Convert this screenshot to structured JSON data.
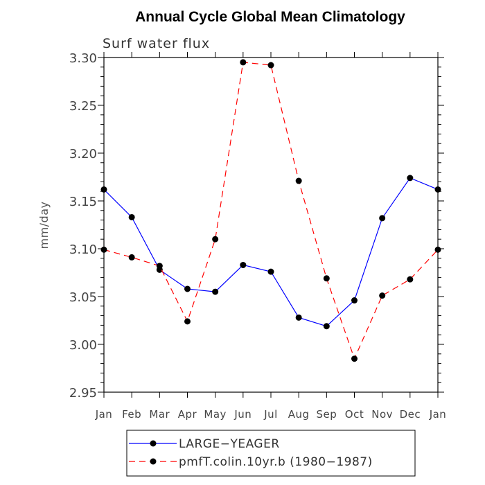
{
  "chart_data": {
    "type": "line",
    "title": "Annual Cycle Global Mean Climatology",
    "subtitle": "Surf water flux",
    "xlabel": "",
    "ylabel": "mm/day",
    "categories": [
      "Jan",
      "Feb",
      "Mar",
      "Apr",
      "May",
      "Jun",
      "Jul",
      "Aug",
      "Sep",
      "Oct",
      "Nov",
      "Dec",
      "Jan"
    ],
    "ylim": [
      2.95,
      3.3
    ],
    "yticks": [
      "2.95",
      "3.00",
      "3.05",
      "3.10",
      "3.15",
      "3.20",
      "3.25",
      "3.30"
    ],
    "series": [
      {
        "name": "LARGE−YEAGER",
        "color": "#0000ff",
        "dash": "solid",
        "values": [
          3.162,
          3.133,
          3.078,
          3.058,
          3.055,
          3.083,
          3.076,
          3.028,
          3.019,
          3.046,
          3.132,
          3.174,
          3.162
        ]
      },
      {
        "name": "pmfT.colin.10yr.b (1980−1987)",
        "color": "#ff0000",
        "dash": "dashed",
        "values": [
          3.099,
          3.091,
          3.082,
          3.024,
          3.11,
          3.295,
          3.292,
          3.171,
          3.069,
          2.985,
          3.051,
          3.068,
          3.099
        ]
      }
    ],
    "legend_position": "bottom"
  }
}
